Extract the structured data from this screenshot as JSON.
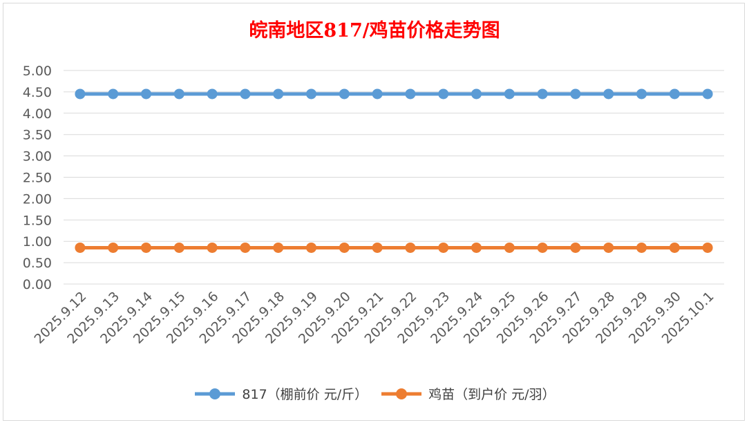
{
  "chart_data": {
    "type": "line",
    "title": "皖南地区817/鸡苗价格走势图",
    "categories": [
      "2025.9.12",
      "2025.9.13",
      "2025.9.14",
      "2025.9.15",
      "2025.9.16",
      "2025.9.17",
      "2025.9.18",
      "2025.9.19",
      "2025.9.20",
      "2025.9.21",
      "2025.9.22",
      "2025.9.23",
      "2025.9.24",
      "2025.9.25",
      "2025.9.26",
      "2025.9.27",
      "2025.9.28",
      "2025.9.29",
      "2025.9.30",
      "2025.10.1"
    ],
    "series": [
      {
        "name": "817（棚前价 元/斤）",
        "color": "#5b9bd5",
        "values": [
          4.45,
          4.45,
          4.45,
          4.45,
          4.45,
          4.45,
          4.45,
          4.45,
          4.45,
          4.45,
          4.45,
          4.45,
          4.45,
          4.45,
          4.45,
          4.45,
          4.45,
          4.45,
          4.45,
          4.45
        ]
      },
      {
        "name": "鸡苗（到户价 元/羽）",
        "color": "#ed7d31",
        "values": [
          0.85,
          0.85,
          0.85,
          0.85,
          0.85,
          0.85,
          0.85,
          0.85,
          0.85,
          0.85,
          0.85,
          0.85,
          0.85,
          0.85,
          0.85,
          0.85,
          0.85,
          0.85,
          0.85,
          0.85
        ]
      }
    ],
    "yticks": [
      "0.00",
      "0.50",
      "1.00",
      "1.50",
      "2.00",
      "2.50",
      "3.00",
      "3.50",
      "4.00",
      "4.50",
      "5.00"
    ],
    "ylim": [
      0,
      5
    ],
    "grid": true,
    "legend_position": "bottom"
  }
}
